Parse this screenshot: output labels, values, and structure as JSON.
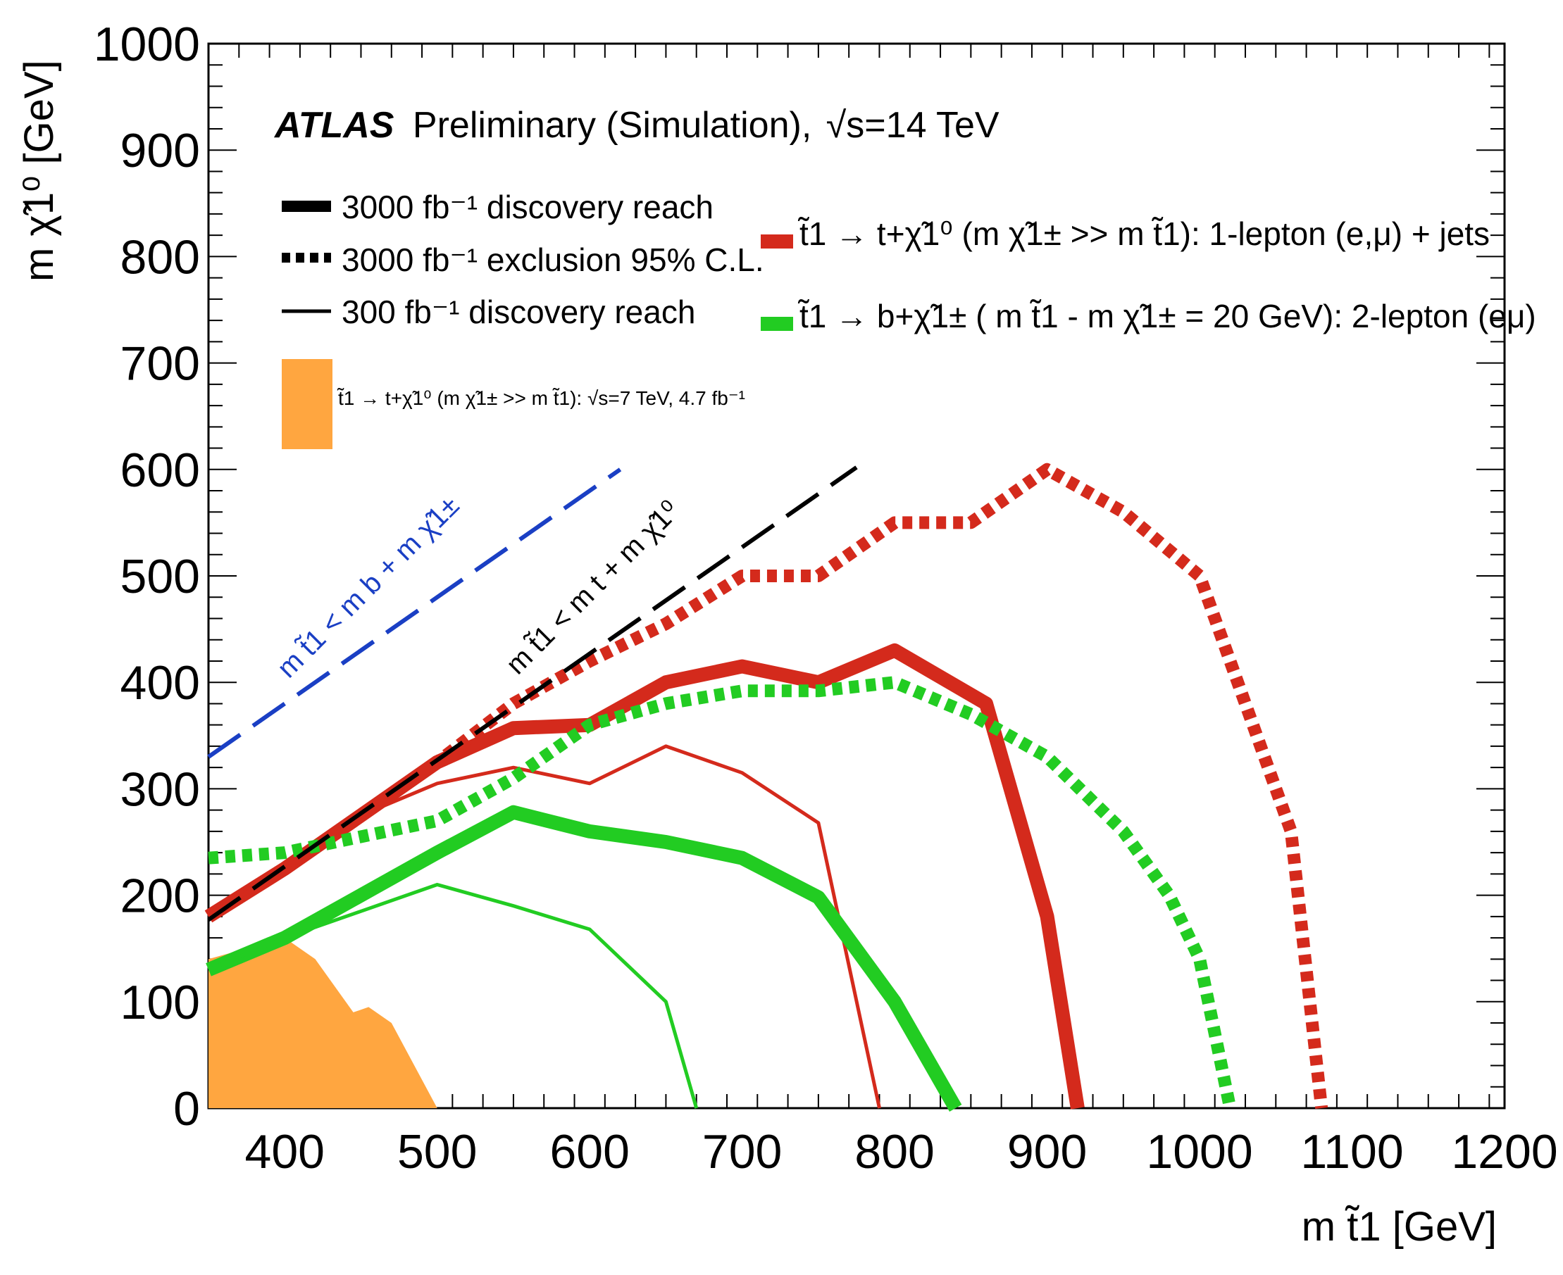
{
  "colors": {
    "red": "#d42a1c",
    "green": "#22cc22",
    "orange": "#ffa640",
    "blue": "#1a3fc4",
    "black": "#000000"
  },
  "header": {
    "experiment": "ATLAS",
    "text": "Preliminary (Simulation),",
    "energy": "√s=14 TeV"
  },
  "chart_data": {
    "type": "line",
    "xlabel": "m t̃1 [GeV]",
    "ylabel": "m χ̃1⁰ [GeV]",
    "xlim": [
      350,
      1200
    ],
    "ylim": [
      0,
      1000
    ],
    "x_ticks": [
      400,
      500,
      600,
      700,
      800,
      900,
      1000,
      1100,
      1200
    ],
    "y_ticks": [
      0,
      100,
      200,
      300,
      400,
      500,
      600,
      700,
      800,
      900,
      1000
    ],
    "legend_linestyles": [
      {
        "label": "3000 fb⁻¹ discovery reach",
        "style": "thick-solid"
      },
      {
        "label": "3000 fb⁻¹ exclusion 95% C.L.",
        "style": "dotted"
      },
      {
        "label": "300 fb⁻¹ discovery reach",
        "style": "thin-solid"
      },
      {
        "label": "t̃1 → t+χ̃1⁰ (m χ̃1± >> m t̃1): √s=7 TeV, 4.7 fb⁻¹",
        "style": "filled-orange"
      }
    ],
    "legend_channels": [
      {
        "label": "t̃1 → t+χ̃1⁰ (m χ̃1± >> m t̃1): 1-lepton (e,μ) + jets",
        "color": "red"
      },
      {
        "label": "t̃1 → b+χ̃1± ( m t̃1 - m χ̃1± = 20 GeV): 2-lepton (eμ)",
        "color": "green"
      }
    ],
    "annotations": [
      {
        "text": "m t̃1 < m b + m χ̃1±",
        "color": "blue"
      },
      {
        "text": "m t̃1 < m t + m χ̃1⁰",
        "color": "black"
      }
    ],
    "series": [
      {
        "name": "3000 fb⁻¹ discovery reach (1-lepton)",
        "color": "red",
        "style": "thick",
        "points": [
          [
            350,
            180
          ],
          [
            400,
            225
          ],
          [
            450,
            275
          ],
          [
            500,
            325
          ],
          [
            550,
            357
          ],
          [
            600,
            360
          ],
          [
            650,
            400
          ],
          [
            700,
            415
          ],
          [
            750,
            400
          ],
          [
            800,
            430
          ],
          [
            860,
            380
          ],
          [
            900,
            180
          ],
          [
            920,
            0
          ]
        ]
      },
      {
        "name": "3000 fb⁻¹ exclusion 95% C.L. (1-lepton)",
        "color": "red",
        "style": "dotted",
        "points": [
          [
            350,
            180
          ],
          [
            400,
            225
          ],
          [
            450,
            275
          ],
          [
            500,
            325
          ],
          [
            550,
            380
          ],
          [
            600,
            420
          ],
          [
            650,
            455
          ],
          [
            700,
            500
          ],
          [
            750,
            500
          ],
          [
            800,
            550
          ],
          [
            850,
            550
          ],
          [
            900,
            600
          ],
          [
            950,
            560
          ],
          [
            1000,
            500
          ],
          [
            1060,
            260
          ],
          [
            1080,
            0
          ]
        ]
      },
      {
        "name": "300 fb⁻¹ discovery reach (1-lepton)",
        "color": "red",
        "style": "thin",
        "points": [
          [
            350,
            180
          ],
          [
            400,
            225
          ],
          [
            450,
            275
          ],
          [
            500,
            305
          ],
          [
            550,
            320
          ],
          [
            600,
            305
          ],
          [
            650,
            340
          ],
          [
            700,
            315
          ],
          [
            750,
            268
          ],
          [
            790,
            0
          ]
        ]
      },
      {
        "name": "3000 fb⁻¹ discovery reach (2-lepton)",
        "color": "green",
        "style": "thick",
        "points": [
          [
            350,
            130
          ],
          [
            400,
            160
          ],
          [
            450,
            200
          ],
          [
            500,
            240
          ],
          [
            550,
            278
          ],
          [
            600,
            260
          ],
          [
            650,
            250
          ],
          [
            700,
            235
          ],
          [
            750,
            198
          ],
          [
            800,
            100
          ],
          [
            840,
            0
          ]
        ]
      },
      {
        "name": "3000 fb⁻¹ exclusion 95% C.L. (2-lepton)",
        "color": "green",
        "style": "dotted",
        "points": [
          [
            350,
            235
          ],
          [
            400,
            240
          ],
          [
            450,
            255
          ],
          [
            500,
            270
          ],
          [
            550,
            310
          ],
          [
            600,
            360
          ],
          [
            650,
            380
          ],
          [
            700,
            392
          ],
          [
            750,
            392
          ],
          [
            800,
            400
          ],
          [
            850,
            370
          ],
          [
            900,
            330
          ],
          [
            950,
            260
          ],
          [
            980,
            200
          ],
          [
            1000,
            140
          ],
          [
            1020,
            0
          ]
        ]
      },
      {
        "name": "300 fb⁻¹ discovery reach (2-lepton)",
        "color": "green",
        "style": "thin",
        "points": [
          [
            350,
            130
          ],
          [
            400,
            160
          ],
          [
            450,
            185
          ],
          [
            500,
            210
          ],
          [
            550,
            190
          ],
          [
            600,
            168
          ],
          [
            650,
            100
          ],
          [
            670,
            0
          ]
        ]
      },
      {
        "name": "√s=7 TeV, 4.7 fb⁻¹ exclusion",
        "color": "orange",
        "style": "filled",
        "points": [
          [
            350,
            0
          ],
          [
            350,
            140
          ],
          [
            400,
            160
          ],
          [
            420,
            140
          ],
          [
            445,
            90
          ],
          [
            455,
            95
          ],
          [
            470,
            80
          ],
          [
            500,
            0
          ]
        ]
      },
      {
        "name": "kinematic limit m_b + m_chi",
        "color": "blue",
        "style": "dashed",
        "points": [
          [
            350,
            330
          ],
          [
            620,
            600
          ]
        ]
      },
      {
        "name": "kinematic limit m_t + m_chi",
        "color": "black",
        "style": "dashed",
        "points": [
          [
            350,
            177
          ],
          [
            775,
            602
          ]
        ]
      }
    ]
  }
}
